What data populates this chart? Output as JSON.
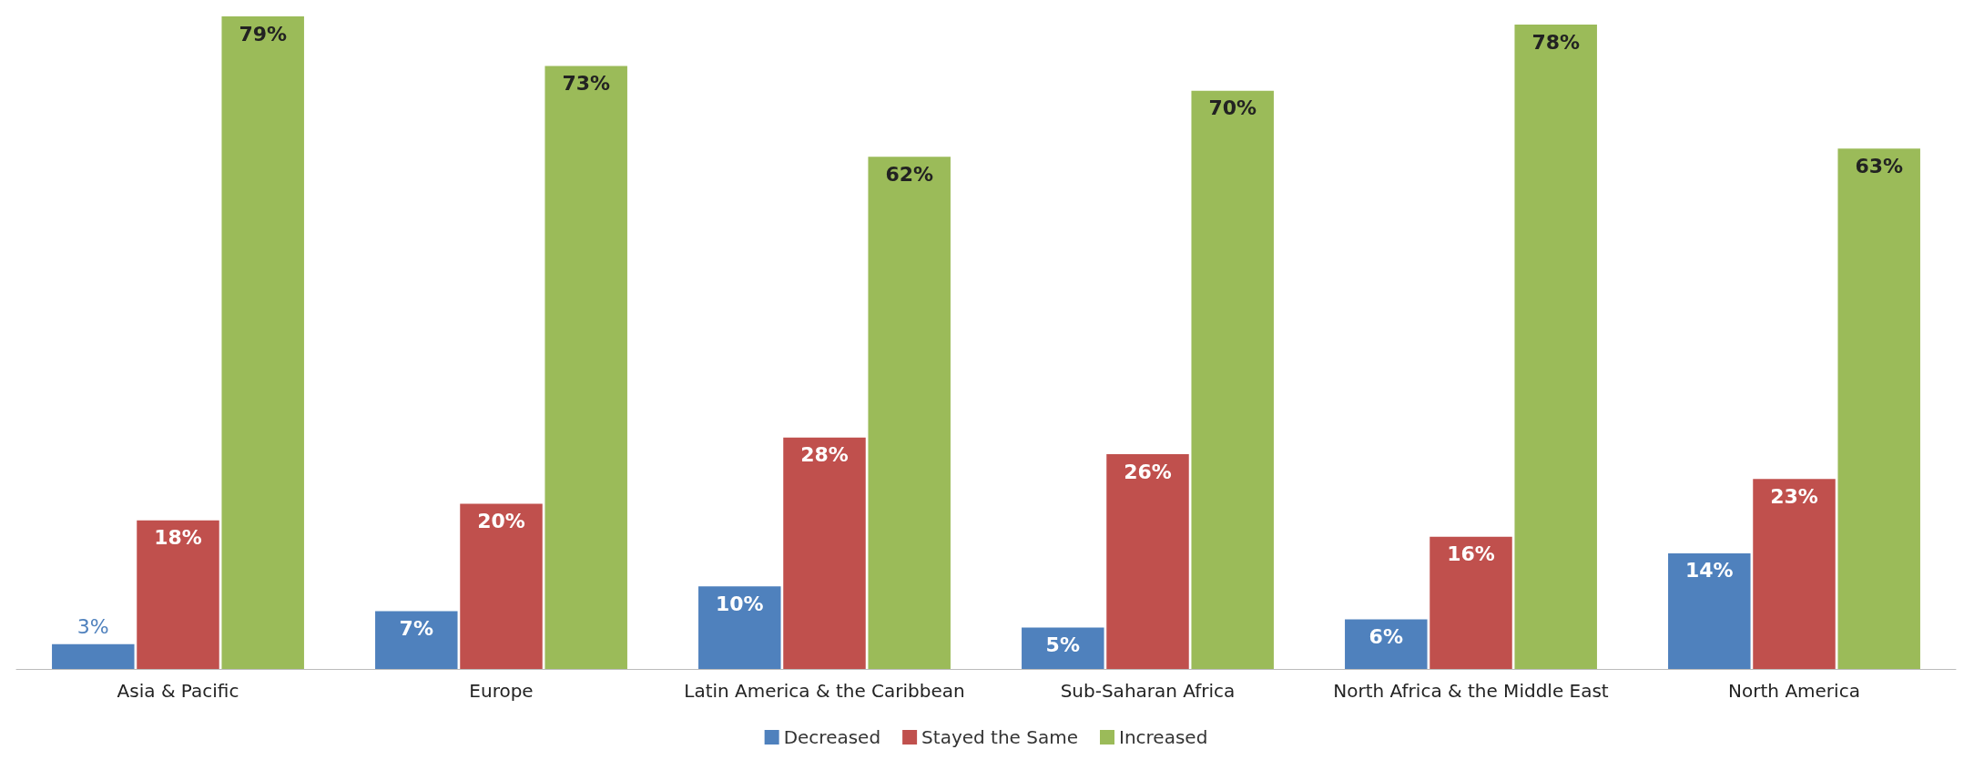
{
  "chart_data": {
    "type": "bar",
    "categories": [
      "Asia & Pacific",
      "Europe",
      "Latin America & the Caribbean",
      "Sub-Saharan Africa",
      "North Africa & the Middle East",
      "North America"
    ],
    "series": [
      {
        "name": "Decreased",
        "color": "#4f81bd",
        "values": [
          3,
          7,
          10,
          5,
          6,
          14
        ],
        "value_labels": [
          "3%",
          "7%",
          "10%",
          "5%",
          "6%",
          "14%"
        ]
      },
      {
        "name": "Stayed the Same",
        "color": "#c0504d",
        "values": [
          18,
          20,
          28,
          26,
          16,
          23
        ],
        "value_labels": [
          "18%",
          "20%",
          "28%",
          "26%",
          "16%",
          "23%"
        ]
      },
      {
        "name": "Increased",
        "color": "#9bbb59",
        "values": [
          79,
          73,
          62,
          70,
          78,
          63
        ],
        "value_labels": [
          "79%",
          "73%",
          "62%",
          "70%",
          "78%",
          "63%"
        ]
      }
    ],
    "legend": "bottom",
    "grid": false
  }
}
